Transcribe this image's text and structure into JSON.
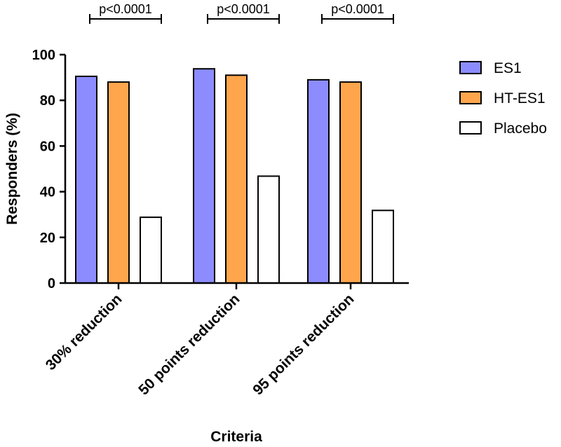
{
  "chart_data": {
    "type": "bar",
    "title": "",
    "xlabel": "Criteria",
    "ylabel": "Responders (%)",
    "ylim": [
      0,
      100
    ],
    "yticks": [
      0,
      20,
      40,
      60,
      80,
      100
    ],
    "grid": false,
    "legend_position": "top-right",
    "categories": [
      "30% reduction",
      "50 points reduction",
      "95 points reduction"
    ],
    "series": [
      {
        "name": "ES1",
        "values": [
          90.5,
          93.8,
          89
        ],
        "color": "#8c8cff"
      },
      {
        "name": "HT-ES1",
        "values": [
          88,
          91,
          88
        ],
        "color": "#ffa64d"
      },
      {
        "name": "Placebo",
        "values": [
          28.8,
          46.8,
          31.8
        ],
        "color": "#ffffff"
      }
    ],
    "annotations": [
      {
        "text": "p<0.0001",
        "category_index": 0
      },
      {
        "text": "p<0.0001",
        "category_index": 1
      },
      {
        "text": "p<0.0001",
        "category_index": 2
      }
    ]
  }
}
